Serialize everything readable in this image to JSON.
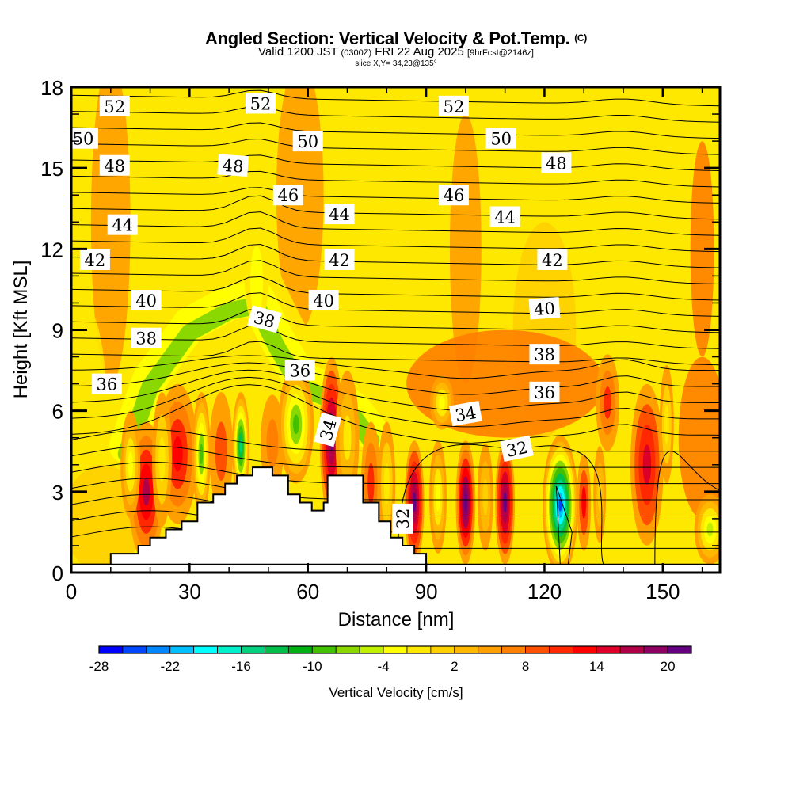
{
  "header": {
    "title": "Angled Section: Vertical Velocity & Pot.Temp.",
    "copyright": "(C)",
    "valid_prefix": "Valid 1200 JST",
    "valid_utc": "(0300Z)",
    "valid_date": "FRI 22 Aug 2025",
    "forecast": "[9hrFcst@2146z]",
    "slice": "slice X,Y= 34,23@135°"
  },
  "chart_data": {
    "type": "heatmap",
    "title": "Angled Section: Vertical Velocity & Pot.Temp.",
    "xlabel": "Distance [nm]",
    "ylabel": "Height [Kft MSL]",
    "xlim": [
      0,
      164.5
    ],
    "ylim": [
      0,
      18
    ],
    "x_ticks": [
      "0",
      "30",
      "60",
      "90",
      "120",
      "150"
    ],
    "x_tick_values": [
      0,
      30,
      60,
      90,
      120,
      150
    ],
    "y_ticks": [
      "0",
      "3",
      "6",
      "9",
      "12",
      "15",
      "18"
    ],
    "y_tick_values": [
      0,
      3,
      6,
      9,
      12,
      15,
      18
    ],
    "colorbar": {
      "label": "Vertical Velocity [cm/s]",
      "tick_labels": [
        "-28",
        "-22",
        "-16",
        "-10",
        "-4",
        "2",
        "8",
        "14",
        "20"
      ],
      "tick_values": [
        -28,
        -22,
        -16,
        -10,
        -4,
        2,
        8,
        14,
        20
      ],
      "colors": [
        "#0000ff",
        "#0046ff",
        "#0087ff",
        "#00bfff",
        "#00ffff",
        "#00efcc",
        "#00d27f",
        "#00c04a",
        "#00b014",
        "#43c000",
        "#8ad800",
        "#c0f000",
        "#ffff00",
        "#ffe800",
        "#ffd000",
        "#ffb800",
        "#ffa000",
        "#ff8000",
        "#ff5000",
        "#ff2800",
        "#ff0000",
        "#dc0028",
        "#b00048",
        "#8c0064",
        "#640080"
      ]
    },
    "contour_field": "Potential Temperature",
    "contour_labels": [
      {
        "value": "52",
        "x": 11,
        "y": 17.3
      },
      {
        "value": "52",
        "x": 48,
        "y": 17.4
      },
      {
        "value": "52",
        "x": 97,
        "y": 17.3
      },
      {
        "value": "50",
        "x": 3,
        "y": 16.1
      },
      {
        "value": "50",
        "x": 60,
        "y": 16.0
      },
      {
        "value": "50",
        "x": 109,
        "y": 16.1
      },
      {
        "value": "48",
        "x": 11,
        "y": 15.1
      },
      {
        "value": "48",
        "x": 41,
        "y": 15.1
      },
      {
        "value": "48",
        "x": 123,
        "y": 15.2
      },
      {
        "value": "46",
        "x": 55,
        "y": 14.0
      },
      {
        "value": "46",
        "x": 97,
        "y": 14.0
      },
      {
        "value": "44",
        "x": 13,
        "y": 12.9
      },
      {
        "value": "44",
        "x": 68,
        "y": 13.3
      },
      {
        "value": "44",
        "x": 110,
        "y": 13.2
      },
      {
        "value": "42",
        "x": 6,
        "y": 11.6
      },
      {
        "value": "42",
        "x": 68,
        "y": 11.6
      },
      {
        "value": "42",
        "x": 122,
        "y": 11.6
      },
      {
        "value": "40",
        "x": 19,
        "y": 10.1
      },
      {
        "value": "40",
        "x": 64,
        "y": 10.1
      },
      {
        "value": "40",
        "x": 120,
        "y": 9.8
      },
      {
        "value": "38",
        "x": 19,
        "y": 8.7
      },
      {
        "value": "38",
        "x": 49,
        "y": 9.4
      },
      {
        "value": "38",
        "x": 120,
        "y": 8.1
      },
      {
        "value": "36",
        "x": 9,
        "y": 7.0
      },
      {
        "value": "36",
        "x": 58,
        "y": 7.5
      },
      {
        "value": "36",
        "x": 120,
        "y": 6.7
      },
      {
        "value": "34",
        "x": 65,
        "y": 5.3
      },
      {
        "value": "34",
        "x": 100,
        "y": 5.9
      },
      {
        "value": "32",
        "x": 113,
        "y": 4.6
      },
      {
        "value": "32",
        "x": 84,
        "y": 2.0
      }
    ],
    "terrain_profile_kft": [
      [
        0,
        0.3
      ],
      [
        10,
        0.7
      ],
      [
        17,
        1.0
      ],
      [
        20,
        1.3
      ],
      [
        24,
        1.6
      ],
      [
        28,
        1.9
      ],
      [
        32,
        2.6
      ],
      [
        36,
        2.9
      ],
      [
        39,
        3.3
      ],
      [
        42,
        3.6
      ],
      [
        46,
        3.9
      ],
      [
        51,
        3.6
      ],
      [
        55,
        2.9
      ],
      [
        58,
        2.6
      ],
      [
        61,
        2.3
      ],
      [
        64,
        2.6
      ],
      [
        65,
        3.6
      ],
      [
        72,
        3.6
      ],
      [
        74,
        2.6
      ],
      [
        78,
        1.9
      ],
      [
        81,
        1.3
      ],
      [
        84,
        1.0
      ],
      [
        87,
        0.7
      ],
      [
        90,
        0.3
      ]
    ],
    "vertical_velocity_features": [
      {
        "x": 19,
        "y": 3.0,
        "value": 14,
        "sign": "up"
      },
      {
        "x": 27,
        "y": 4.6,
        "value": 10,
        "sign": "up"
      },
      {
        "x": 33,
        "y": 4.5,
        "value": -10,
        "sign": "down"
      },
      {
        "x": 43,
        "y": 4.6,
        "value": -16,
        "sign": "down"
      },
      {
        "x": 57,
        "y": 5.7,
        "value": -12,
        "sign": "down"
      },
      {
        "x": 66,
        "y": 4.6,
        "value": 20,
        "sign": "up"
      },
      {
        "x": 68,
        "y": 6.0,
        "value": 12,
        "sign": "up"
      },
      {
        "x": 87,
        "y": 2.5,
        "value": 16,
        "sign": "up"
      },
      {
        "x": 100,
        "y": 2.5,
        "value": 20,
        "sign": "up"
      },
      {
        "x": 110,
        "y": 2.5,
        "value": 18,
        "sign": "up"
      },
      {
        "x": 124,
        "y": 2.5,
        "value": -28,
        "sign": "down"
      },
      {
        "x": 130,
        "y": 2.8,
        "value": 10,
        "sign": "up"
      },
      {
        "x": 146,
        "y": 4.0,
        "value": 12,
        "sign": "up"
      },
      {
        "x": 45,
        "y": 8.7,
        "value": -8,
        "sign": "down"
      }
    ]
  }
}
